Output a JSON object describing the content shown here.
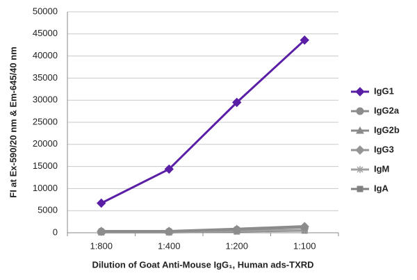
{
  "chart_data": {
    "type": "line",
    "y_label": "FI at Ex-590/20 nm & Em-645/40 nm",
    "x_label": "Dilution of Goat Anti-Mouse IgG₁, Human ads-TXRD",
    "categories": [
      "1:800",
      "1:400",
      "1:200",
      "1:100"
    ],
    "series": [
      {
        "name": "IgG1",
        "color": "#5a1ea6",
        "marker": "diamond",
        "values": [
          6700,
          14400,
          29500,
          43600
        ]
      },
      {
        "name": "IgG2a",
        "color": "#8c8c8c",
        "marker": "circle",
        "values": [
          300,
          300,
          700,
          1200
        ]
      },
      {
        "name": "IgG2b",
        "color": "#8a8a8a",
        "marker": "triangle",
        "values": [
          400,
          400,
          900,
          1500
        ]
      },
      {
        "name": "IgG3",
        "color": "#959595",
        "marker": "diamond",
        "values": [
          300,
          300,
          700,
          1400
        ]
      },
      {
        "name": "IgM",
        "color": "#a0a0a0",
        "marker": "star",
        "values": [
          200,
          200,
          400,
          600
        ]
      },
      {
        "name": "IgA",
        "color": "#808080",
        "marker": "square",
        "values": [
          100,
          100,
          300,
          500
        ]
      }
    ],
    "ylim": [
      0,
      50000
    ],
    "yticks": [
      0,
      5000,
      10000,
      15000,
      20000,
      25000,
      30000,
      35000,
      40000,
      45000,
      50000
    ],
    "grid": true
  }
}
